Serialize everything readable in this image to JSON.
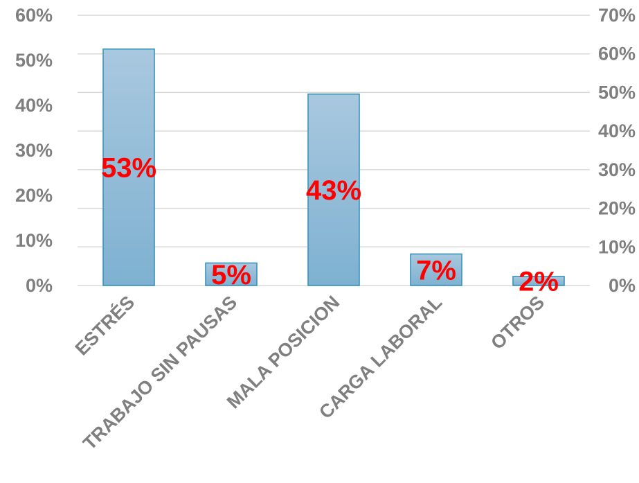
{
  "chart_data": {
    "type": "bar",
    "categories": [
      "ESTRÉS",
      "TRABAJO SIN PAUSAS",
      "MALA POSICION",
      "CARGA LABORAL",
      "OTROS"
    ],
    "values": [
      52.5,
      5,
      42.5,
      7,
      2
    ],
    "data_labels": [
      "53%",
      "5%",
      "43%",
      "7%",
      "2%"
    ],
    "title": "",
    "xlabel": "",
    "ylabel": "",
    "ylim": [
      0,
      60
    ],
    "y_ticks": [
      "0%",
      "10%",
      "20%",
      "30%",
      "40%",
      "50%",
      "60%"
    ],
    "y2lim": [
      0,
      70
    ],
    "y2_ticks": [
      "0%",
      "10%",
      "20%",
      "30%",
      "40%",
      "50%",
      "60%",
      "70%"
    ],
    "grid": true,
    "legend": "none",
    "colors": {
      "bar_fill_top": "#a9c8df",
      "bar_fill_bottom": "#7eb1d1",
      "bar_stroke": "#3a93b8",
      "data_label": "#ff0000",
      "axis_text": "#7f7f7f",
      "gridline": "#d9d9d9"
    }
  }
}
